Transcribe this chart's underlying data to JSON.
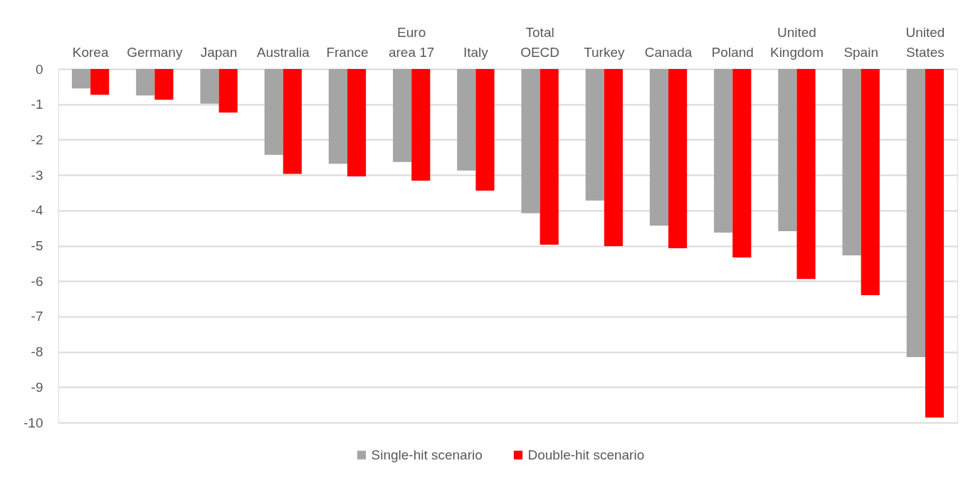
{
  "chart_data": {
    "type": "bar",
    "categories": [
      "Korea",
      "Germany",
      "Japan",
      "Australia",
      "France",
      "Euro area 17",
      "Italy",
      "Total OECD",
      "Turkey",
      "Canada",
      "Poland",
      "United Kingdom",
      "Spain",
      "United States"
    ],
    "series": [
      {
        "name": "Single-hit scenario",
        "color": "#a5a5a5",
        "values": [
          -0.55,
          -0.75,
          -0.98,
          -2.43,
          -2.68,
          -2.63,
          -2.87,
          -4.08,
          -3.72,
          -4.43,
          -4.63,
          -4.59,
          -5.27,
          -8.15
        ]
      },
      {
        "name": "Double-hit scenario",
        "color": "#ff0000",
        "values": [
          -0.73,
          -0.87,
          -1.23,
          -2.97,
          -3.04,
          -3.16,
          -3.44,
          -4.97,
          -5.01,
          -5.07,
          -5.33,
          -5.94,
          -6.4,
          -9.86
        ]
      }
    ],
    "ylim": [
      -10,
      0
    ],
    "yticks": [
      0,
      -1,
      -2,
      -3,
      -4,
      -5,
      -6,
      -7,
      -8,
      -9,
      -10
    ],
    "grid": "y",
    "legend": "bottom"
  }
}
